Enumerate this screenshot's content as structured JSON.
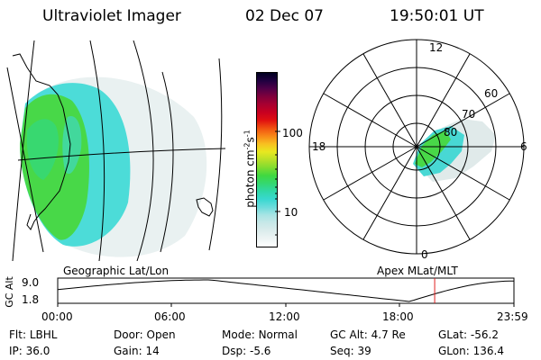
{
  "header": {
    "title": "Ultraviolet Imager",
    "date": "02 Dec 07",
    "time": "19:50:01 UT"
  },
  "colorbar": {
    "label": "photon cm",
    "label_exp1": "-2",
    "label_s": "s",
    "label_exp2": "-1",
    "ticks": [
      "100",
      "10"
    ],
    "colors": [
      "#ffffff",
      "#eef4f4",
      "#dcecec",
      "#c8e8e8",
      "#a8e4e4",
      "#6cdcdc",
      "#38d8d0",
      "#30d8a8",
      "#34d870",
      "#40d840",
      "#80dc30",
      "#b8e028",
      "#e8e820",
      "#f8c020",
      "#f88818",
      "#f05010",
      "#e01010",
      "#c80020",
      "#a80030",
      "#80003c",
      "#500048",
      "#200040",
      "#000020"
    ]
  },
  "polar": {
    "clock_labels": [
      "12",
      "18",
      "6",
      "0"
    ],
    "lat_labels": [
      "60",
      "70",
      "80"
    ]
  },
  "panel_labels": {
    "left": "Geographic Lat/Lon",
    "right": "Apex  MLat/MLT"
  },
  "altitude_plot": {
    "ylabel": "GC Alt",
    "ymax": "9.0",
    "ymin": "1.8",
    "x_ticks": [
      "00:00",
      "06:00",
      "12:00",
      "18:00",
      "23:59"
    ],
    "current_time_hours": 19.83
  },
  "footer": {
    "row1": [
      {
        "label": "Flt:",
        "value": "LBHL"
      },
      {
        "label": "Door:",
        "value": "Open"
      },
      {
        "label": "Mode:",
        "value": "Normal"
      },
      {
        "label": "GC Alt:",
        "value": "4.7 Re"
      },
      {
        "label": "GLat:",
        "value": "-56.2"
      }
    ],
    "row2": [
      {
        "label": "IP:",
        "value": "36.0"
      },
      {
        "label": "Gain:",
        "value": "14"
      },
      {
        "label": "Dsp:",
        "value": "-5.6"
      },
      {
        "label": "Seq:",
        "value": "39"
      },
      {
        "label": "GLon:",
        "value": "136.4"
      }
    ]
  }
}
